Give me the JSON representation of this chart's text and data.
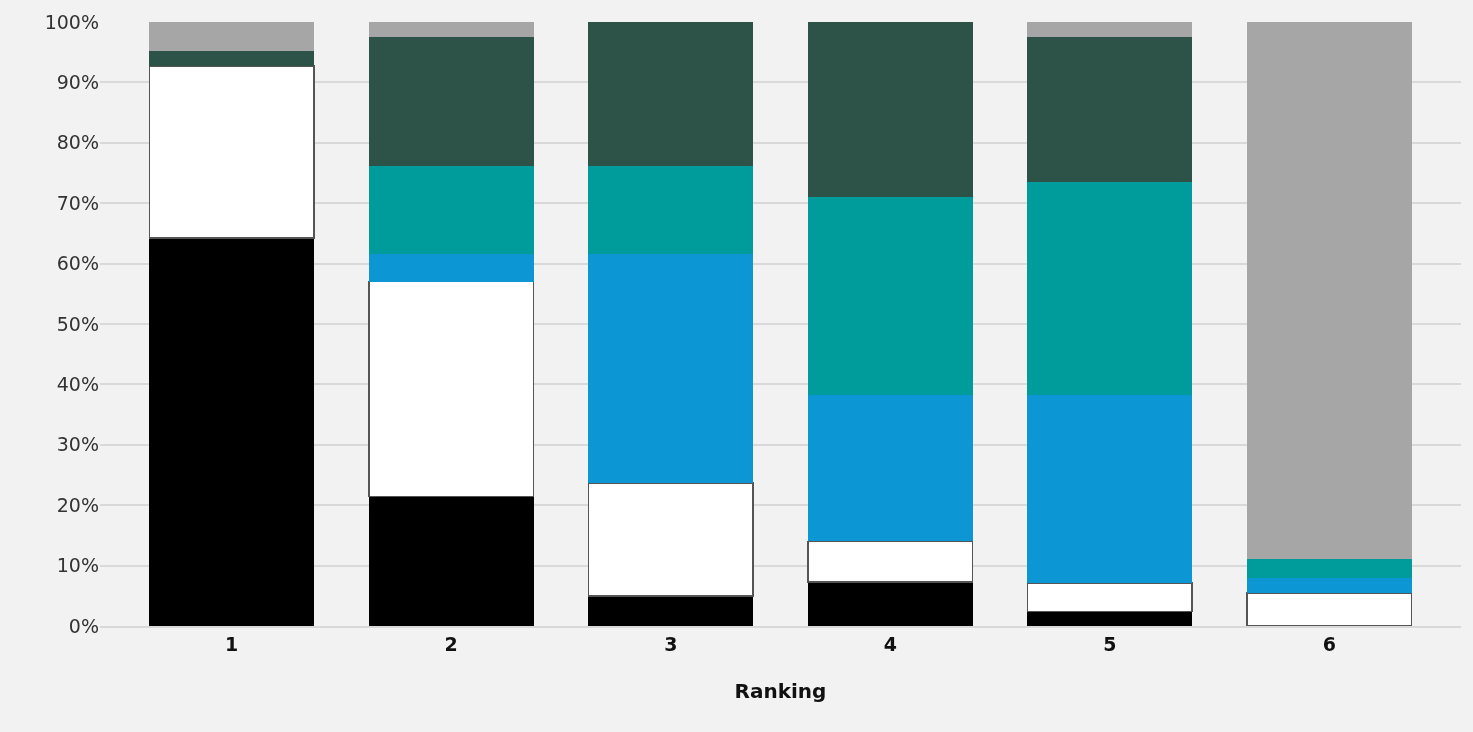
{
  "chart_data": {
    "type": "bar",
    "stacked": true,
    "xlabel": "Ranking",
    "categories": [
      "1",
      "2",
      "3",
      "4",
      "5",
      "6"
    ],
    "series": [
      {
        "color": "#000000",
        "values": [
          64.2,
          21.4,
          5.0,
          7.3,
          2.4,
          0
        ]
      },
      {
        "color": "#ffffff",
        "values": [
          28.5,
          35.6,
          18.7,
          6.7,
          4.7,
          5.5
        ]
      },
      {
        "color": "#0d96d4",
        "values": [
          0,
          4.6,
          37.9,
          24.2,
          31.1,
          2.5
        ]
      },
      {
        "color": "#009b9b",
        "values": [
          0,
          14.6,
          14.6,
          32.9,
          35.3,
          3.1
        ]
      },
      {
        "color": "#2d5247",
        "values": [
          2.5,
          21.3,
          23.8,
          28.9,
          24.1,
          0
        ]
      },
      {
        "color": "#a6a6a6",
        "values": [
          4.8,
          2.5,
          0,
          0,
          2.4,
          88.9
        ]
      }
    ],
    "ylim": [
      0,
      100
    ],
    "yticks": [
      {
        "value": 0,
        "label": "0%"
      },
      {
        "value": 10,
        "label": "10%"
      },
      {
        "value": 20,
        "label": "20%"
      },
      {
        "value": 30,
        "label": "30%"
      },
      {
        "value": 40,
        "label": "40%"
      },
      {
        "value": 50,
        "label": "50%"
      },
      {
        "value": 60,
        "label": "60%"
      },
      {
        "value": 70,
        "label": "70%"
      },
      {
        "value": 80,
        "label": "80%"
      },
      {
        "value": 90,
        "label": "90%"
      },
      {
        "value": 100,
        "label": "100%"
      }
    ],
    "grid": "y"
  }
}
